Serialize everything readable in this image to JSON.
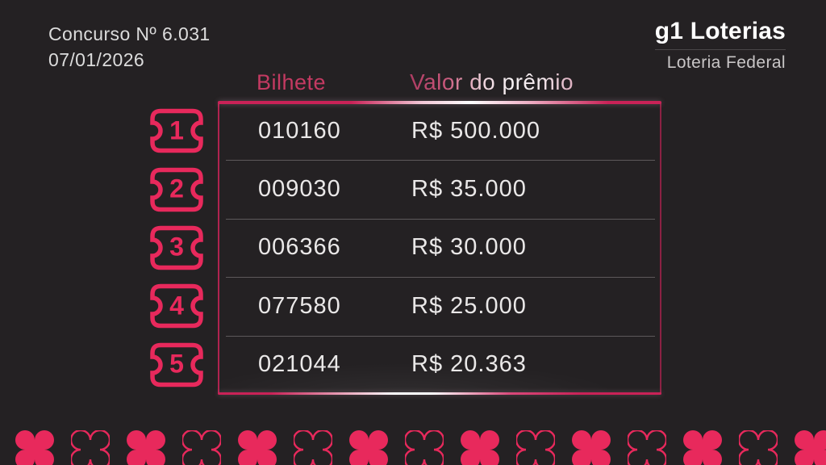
{
  "header": {
    "concurso": "Concurso Nº 6.031",
    "date": "07/01/2026"
  },
  "logo": {
    "title": "g1 Loterias",
    "subtitle": "Loteria Federal"
  },
  "table": {
    "col_bilhete": "Bilhete",
    "col_valor": "Valor do prêmio",
    "rows": [
      {
        "rank": "1",
        "bilhete": "010160",
        "valor": "R$ 500.000"
      },
      {
        "rank": "2",
        "bilhete": "009030",
        "valor": "R$ 35.000"
      },
      {
        "rank": "3",
        "bilhete": "006366",
        "valor": "R$ 30.000"
      },
      {
        "rank": "4",
        "bilhete": "077580",
        "valor": "R$ 25.000"
      },
      {
        "rank": "5",
        "bilhete": "021044",
        "valor": "R$ 20.363"
      }
    ]
  },
  "icons": {
    "rank_badge": "ticket-icon",
    "decoration": "clover-icon"
  },
  "decor": {
    "clover_count": 15,
    "pattern": "alternating filled/outline"
  },
  "colors": {
    "accent": "#e8295c",
    "background": "#242123",
    "table_border": "#c02152",
    "text_primary": "#eae8e8"
  }
}
